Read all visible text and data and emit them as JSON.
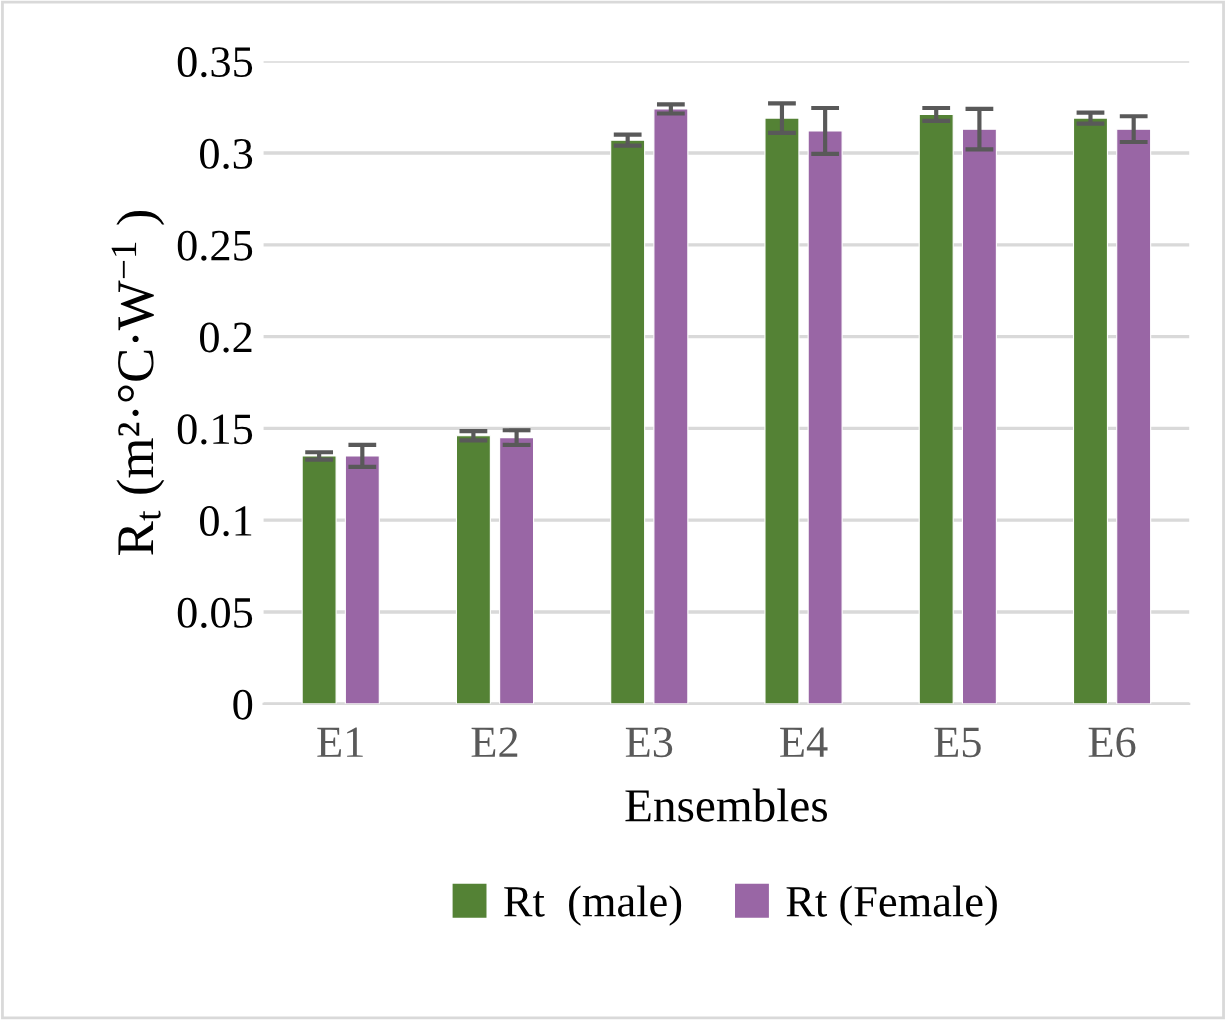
{
  "chart_data": {
    "type": "bar",
    "xlabel": "Ensembles",
    "ylabel": "R$_{t}$ (m²·°C·W$^{−1}$ )",
    "categories": [
      "E1",
      "E2",
      "E3",
      "E4",
      "E5",
      "E6"
    ],
    "series": [
      {
        "name": "Rt  (male)",
        "color": "#548235",
        "values": [
          0.135,
          0.146,
          0.307,
          0.319,
          0.321,
          0.319
        ],
        "errors": [
          0.002,
          0.0025,
          0.003,
          0.008,
          0.0035,
          0.003
        ]
      },
      {
        "name": "Rt (Female)",
        "color": "#9966a5",
        "values": [
          0.135,
          0.145,
          0.324,
          0.312,
          0.313,
          0.313
        ],
        "errors": [
          0.006,
          0.004,
          0.0025,
          0.0125,
          0.011,
          0.007
        ]
      }
    ],
    "ylim": [
      0,
      0.35
    ],
    "yticks": [
      0,
      {
        "value": 0.05,
        "label": "0.05"
      },
      {
        "value": 0.1,
        "label": "0.1"
      },
      {
        "value": 0.15,
        "label": "0.15"
      },
      {
        "value": 0.2,
        "label": "0.2"
      },
      {
        "value": 0.25,
        "label": "0.25"
      },
      {
        "value": 0.3,
        "label": "0.3"
      },
      {
        "value": 0.35,
        "label": "0.35"
      }
    ],
    "grid": "y",
    "legend": "bottom"
  }
}
